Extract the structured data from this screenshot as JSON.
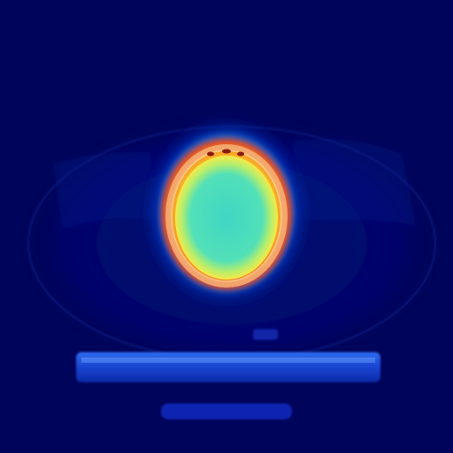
{
  "image": {
    "kind": "ct-slice-with-heatmap-overlay",
    "colormap": "jet",
    "background_color": "#00045a",
    "heatmap_colors": [
      "#00045a",
      "#0a2fd6",
      "#1aa7ff",
      "#3fe0c8",
      "#f6e94a",
      "#f7a21f",
      "#e83a1e"
    ]
  }
}
